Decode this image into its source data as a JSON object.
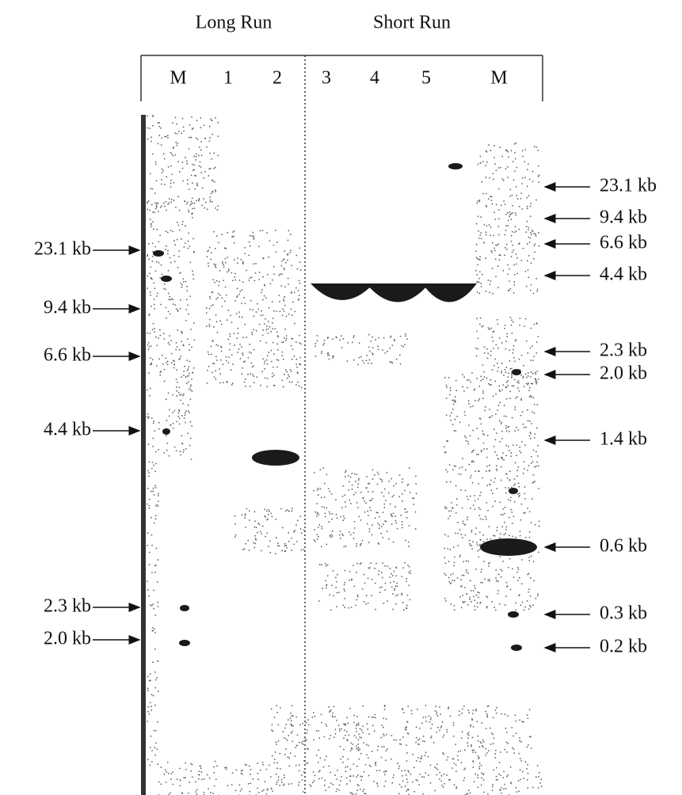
{
  "header": {
    "groups": [
      "Long Run",
      "Short Run"
    ],
    "lanes": [
      "M",
      "1",
      "2",
      "3",
      "4",
      "5",
      "M"
    ]
  },
  "left_markers": [
    "23.1 kb",
    "9.4 kb",
    "6.6 kb",
    "4.4 kb",
    "2.3 kb",
    "2.0 kb"
  ],
  "right_markers": [
    "23.1 kb",
    "9.4 kb",
    "6.6 kb",
    "4.4 kb",
    "2.3 kb",
    "2.0 kb",
    "1.4 kb",
    "0.6 kb",
    "0.3 kb",
    "0.2 kb"
  ]
}
